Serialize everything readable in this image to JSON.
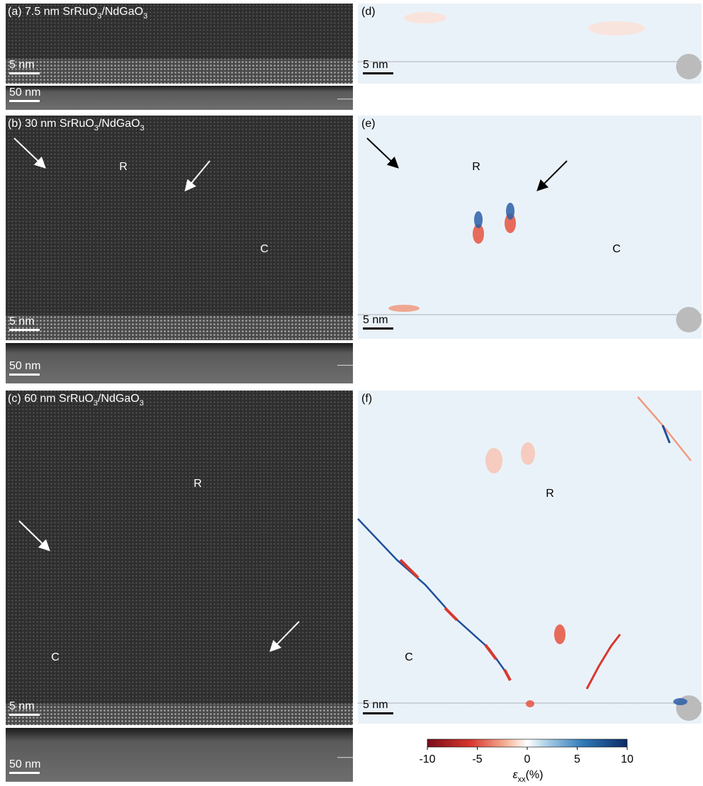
{
  "left_panels": [
    {
      "title": [
        "(a) 7.5 nm SrRuO",
        "3",
        "/NdGaO",
        "3"
      ],
      "scalebar": "5 nm",
      "overview_scalebar": "50 nm",
      "regions": []
    },
    {
      "title": [
        "(b) 30 nm SrRuO",
        "3",
        "/NdGaO",
        "3"
      ],
      "scalebar": "5 nm",
      "overview_scalebar": "50 nm",
      "regions": [
        "R",
        "C"
      ]
    },
    {
      "title": [
        "(c) 60 nm SrRuO",
        "3",
        "/NdGaO",
        "3"
      ],
      "scalebar": "5 nm",
      "overview_scalebar": "50 nm",
      "regions": [
        "R",
        "C"
      ]
    }
  ],
  "strain_maps": [
    {
      "label": "(d)",
      "scalebar": "5 nm",
      "regions": []
    },
    {
      "label": "(e)",
      "scalebar": "5 nm",
      "regions": [
        "R",
        "C"
      ]
    },
    {
      "label": "(f)",
      "scalebar": "5 nm",
      "regions": [
        "R",
        "C"
      ]
    }
  ],
  "colorbar": {
    "lim": [
      -10,
      10
    ],
    "ticks": [
      -10,
      -5,
      0,
      5,
      10
    ],
    "label": [
      "ε",
      "xx",
      "(%)"
    ]
  }
}
